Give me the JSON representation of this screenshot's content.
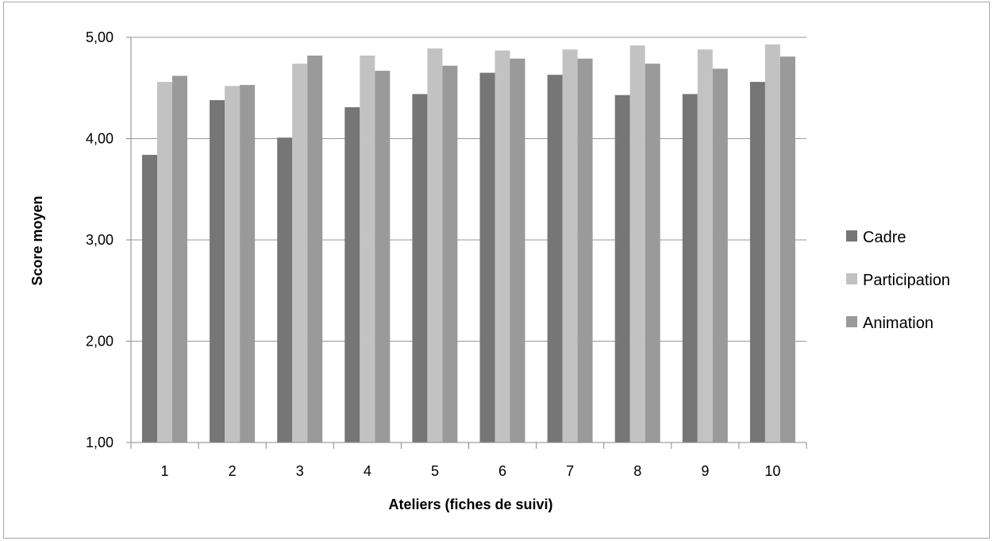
{
  "chart_data": {
    "type": "bar",
    "title": "",
    "xlabel": "Ateliers (fiches de suivi)",
    "ylabel": "Score moyen",
    "ylim": [
      1,
      5
    ],
    "yticks": [
      "1,00",
      "2,00",
      "3,00",
      "4,00",
      "5,00"
    ],
    "categories": [
      "1",
      "2",
      "3",
      "4",
      "5",
      "6",
      "7",
      "8",
      "9",
      "10"
    ],
    "grid": "horizontal",
    "legend_position": "right",
    "series": [
      {
        "name": "Cadre",
        "color": "#767676",
        "values": [
          3.84,
          4.38,
          4.01,
          4.31,
          4.44,
          4.65,
          4.63,
          4.43,
          4.44,
          4.56
        ]
      },
      {
        "name": "Participation",
        "color": "#c2c2c2",
        "values": [
          4.56,
          4.52,
          4.74,
          4.82,
          4.89,
          4.87,
          4.88,
          4.92,
          4.88,
          4.93
        ]
      },
      {
        "name": "Animation",
        "color": "#9a9a9a",
        "values": [
          4.62,
          4.53,
          4.82,
          4.67,
          4.72,
          4.79,
          4.79,
          4.74,
          4.69,
          4.81
        ]
      }
    ]
  }
}
